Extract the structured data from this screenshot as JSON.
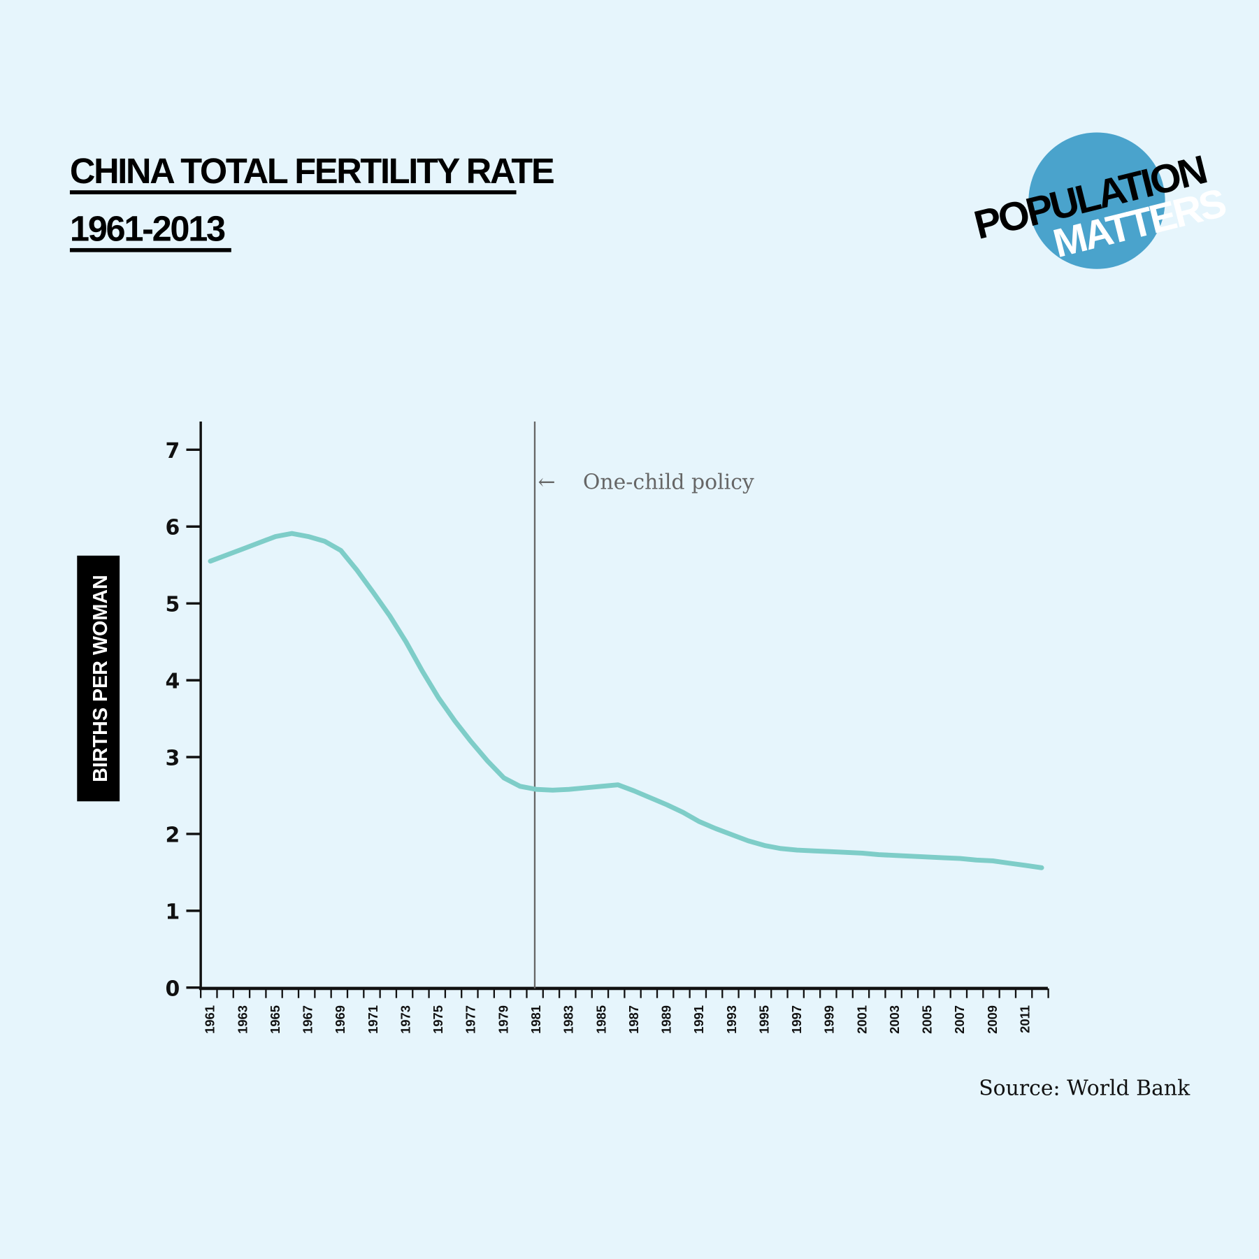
{
  "colors": {
    "background": "#e6f5fc",
    "line": "#7ecdc8",
    "logo_circle": "#4aa3cc",
    "annotation": "#666666"
  },
  "logo": {
    "line1": "POPULATION",
    "line2": "MATTERS"
  },
  "chart_data": {
    "type": "line",
    "title": "CHINA TOTAL FERTILITY RATE",
    "subtitle": "1961-2013",
    "ylabel": "BIRTHS PER WOMAN",
    "xlabel": "",
    "ylim": [
      0,
      7.3
    ],
    "yticks": [
      "0",
      "1",
      "2",
      "3",
      "4",
      "5",
      "6",
      "7"
    ],
    "xticks": [
      "1961",
      "1963",
      "1965",
      "1967",
      "1969",
      "1971",
      "1973",
      "1975",
      "1977",
      "1979",
      "1981",
      "1983",
      "1985",
      "1987",
      "1989",
      "1991",
      "1993",
      "1995",
      "1997",
      "1999",
      "2001",
      "2003",
      "2005",
      "2007",
      "2009",
      "2011"
    ],
    "grid": false,
    "x": [
      1961,
      1962,
      1963,
      1964,
      1965,
      1966,
      1967,
      1968,
      1969,
      1970,
      1971,
      1972,
      1973,
      1974,
      1975,
      1976,
      1977,
      1978,
      1979,
      1980,
      1981,
      1982,
      1983,
      1984,
      1985,
      1986,
      1987,
      1988,
      1989,
      1990,
      1991,
      1992,
      1993,
      1994,
      1995,
      1996,
      1997,
      1998,
      1999,
      2000,
      2001,
      2002,
      2003,
      2004,
      2005,
      2006,
      2007,
      2008,
      2009,
      2010,
      2011,
      2012
    ],
    "values": [
      5.55,
      5.63,
      5.71,
      5.79,
      5.87,
      5.91,
      5.87,
      5.81,
      5.69,
      5.43,
      5.14,
      4.84,
      4.5,
      4.12,
      3.77,
      3.47,
      3.2,
      2.95,
      2.73,
      2.62,
      2.58,
      2.57,
      2.58,
      2.6,
      2.62,
      2.64,
      2.56,
      2.47,
      2.38,
      2.28,
      2.16,
      2.07,
      1.99,
      1.91,
      1.85,
      1.81,
      1.79,
      1.78,
      1.77,
      1.76,
      1.75,
      1.73,
      1.72,
      1.71,
      1.7,
      1.69,
      1.68,
      1.66,
      1.65,
      1.62,
      1.59,
      1.56
    ],
    "annotation": {
      "year": 1981,
      "text": "One-child policy",
      "arrow": "←"
    },
    "source": "Source:  World Bank"
  }
}
